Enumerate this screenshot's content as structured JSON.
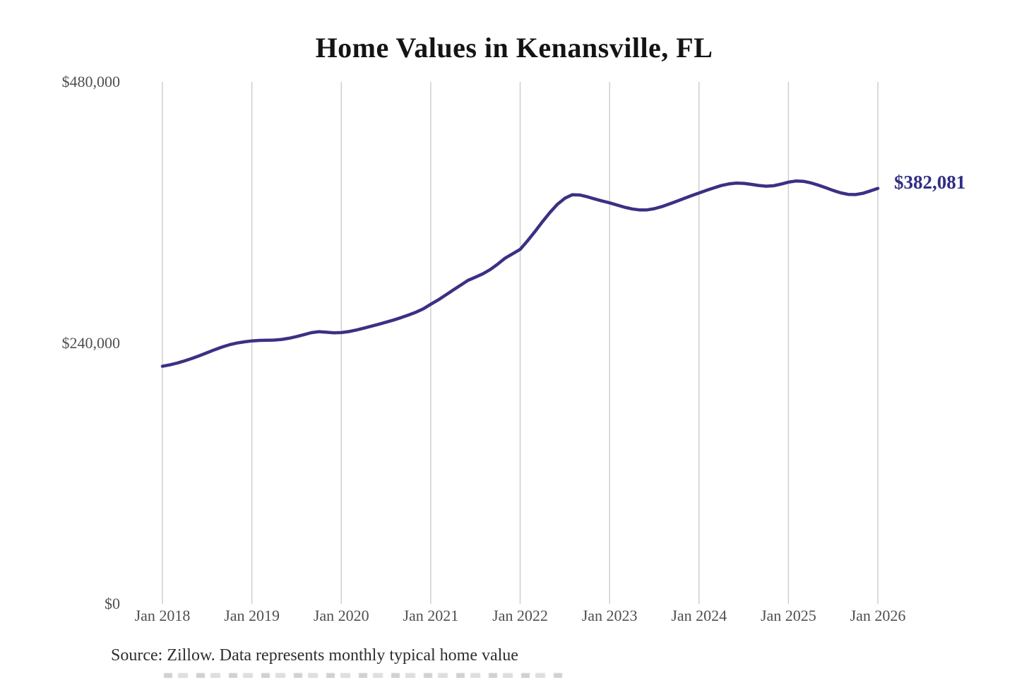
{
  "chart": {
    "title": "Home Values in Kenansville, FL",
    "end_label": "$382,081",
    "source_note": "Source: Zillow. Data represents monthly typical home value",
    "colors": {
      "line": "#3a3185",
      "grid": "#cccccc",
      "tick_text": "#4f4f4f",
      "title_text": "#141414",
      "annotation_text": "#312d84",
      "source_text": "#2e2e2e",
      "background": "#ffffff"
    },
    "y_axis": {
      "ticks": [
        {
          "label": "$480,000",
          "value": 480000
        },
        {
          "label": "$240,000",
          "value": 240000
        },
        {
          "label": "$0",
          "value": 0
        }
      ],
      "max": 480000,
      "min": 0
    },
    "x_axis": {
      "ticks": [
        "Jan 2018",
        "Jan 2019",
        "Jan 2020",
        "Jan 2021",
        "Jan 2022",
        "Jan 2023",
        "Jan 2024",
        "Jan 2025",
        "Jan 2026"
      ]
    }
  },
  "chart_data": {
    "type": "line",
    "title": "Home Values in Kenansville, FL",
    "xlabel": "",
    "ylabel": "",
    "x_start": "Jan 2018",
    "x_end": "Jan 2026",
    "frequency": "monthly",
    "x_tick_labels": [
      "Jan 2018",
      "Jan 2019",
      "Jan 2020",
      "Jan 2021",
      "Jan 2022",
      "Jan 2023",
      "Jan 2024",
      "Jan 2025",
      "Jan 2026"
    ],
    "y_tick_labels": [
      "$0",
      "$240,000",
      "$480,000"
    ],
    "ylim": [
      0,
      480000
    ],
    "grid": "vertical-only",
    "legend": "none",
    "last_point_label": "$382,081",
    "values": [
      218500,
      219800,
      221500,
      223500,
      225800,
      228300,
      231000,
      233700,
      236200,
      238300,
      239900,
      241000,
      241800,
      242300,
      242400,
      242600,
      243200,
      244300,
      245800,
      247600,
      249400,
      250300,
      249800,
      249300,
      249500,
      250400,
      251800,
      253500,
      255300,
      257100,
      259000,
      261000,
      263200,
      265600,
      268200,
      271300,
      275500,
      279500,
      284000,
      288500,
      293000,
      297500,
      300500,
      303500,
      307500,
      312500,
      318000,
      322000,
      326000,
      334000,
      342500,
      351500,
      360000,
      367500,
      373000,
      376300,
      376000,
      374400,
      372400,
      370500,
      368800,
      366800,
      364800,
      363200,
      362300,
      362300,
      363400,
      365300,
      367700,
      370200,
      372800,
      375400,
      377900,
      380300,
      382600,
      384700,
      386200,
      386900,
      386700,
      385800,
      384800,
      384100,
      384500,
      386000,
      387800,
      388900,
      388600,
      387200,
      385100,
      382700,
      380200,
      378000,
      376600,
      376400,
      377600,
      379800,
      382081
    ]
  }
}
